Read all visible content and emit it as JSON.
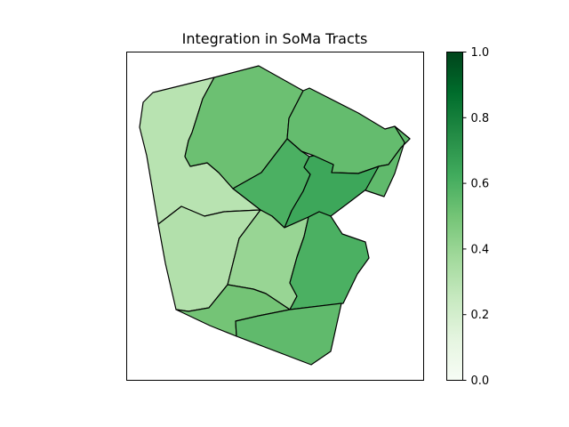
{
  "chart_data": {
    "type": "choropleth",
    "title": "Integration in SoMa Tracts",
    "colormap": "Greens",
    "colorbar": {
      "range": [
        0.0,
        1.0
      ],
      "ticks": [
        "0.0",
        "0.2",
        "0.4",
        "0.6",
        "0.8",
        "1.0"
      ],
      "tick_values": [
        0.0,
        0.2,
        0.4,
        0.6,
        0.8,
        1.0
      ]
    },
    "grid": false,
    "axes_ticks_visible": false,
    "regions": [
      {
        "id": "tract-west-north",
        "value": 0.3
      },
      {
        "id": "tract-north-center",
        "value": 0.52
      },
      {
        "id": "tract-northeast",
        "value": 0.54
      },
      {
        "id": "tract-center",
        "value": 0.6
      },
      {
        "id": "tract-east-center",
        "value": 0.64
      },
      {
        "id": "tract-east-notch",
        "value": 0.55
      },
      {
        "id": "tract-west-south",
        "value": 0.32
      },
      {
        "id": "tract-center-south",
        "value": 0.4
      },
      {
        "id": "tract-southeast",
        "value": 0.6
      },
      {
        "id": "tract-south-west",
        "value": 0.5
      },
      {
        "id": "tract-south",
        "value": 0.55
      }
    ]
  }
}
